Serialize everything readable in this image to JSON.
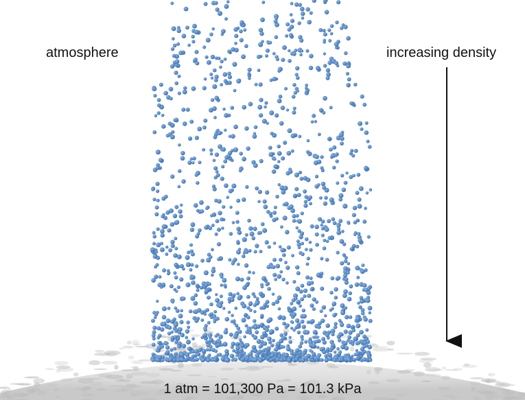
{
  "labels": {
    "atmosphere": "atmosphere",
    "density_arrow": "increasing density",
    "pressure": "1 atm = 101,300 Pa = 101.3 kPa"
  },
  "colors": {
    "particle": "#5b8ec8",
    "particle_edge": "#3f72b0",
    "ground": "#e4e4e4",
    "ground_shadow": "#b9b9b9",
    "arrow": "#111111",
    "text": "#111111"
  },
  "icons": {
    "density_arrow": "down-arrow-icon"
  }
}
